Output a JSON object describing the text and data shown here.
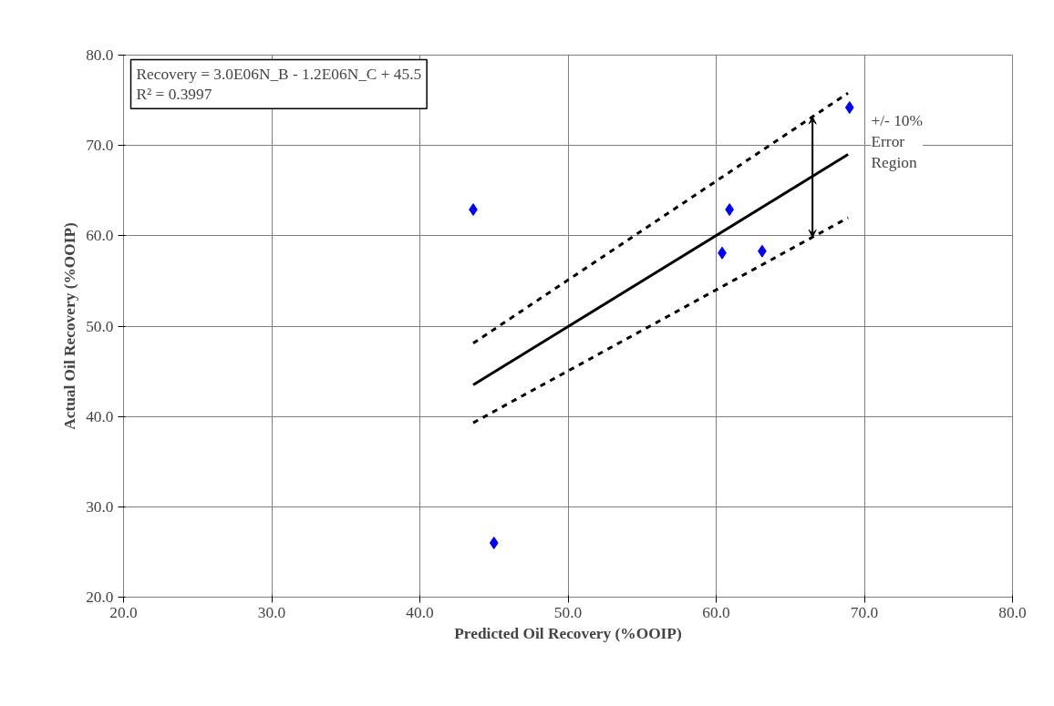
{
  "chart_data": {
    "type": "scatter",
    "xlabel": "Predicted Oil Recovery (%OOIP)",
    "ylabel": "Actual Oil Recovery (%OOIP)",
    "xlim": [
      20,
      80
    ],
    "ylim": [
      20,
      80
    ],
    "xticks": [
      {
        "value": 20,
        "label": "20.0"
      },
      {
        "value": 30,
        "label": "30.0"
      },
      {
        "value": 40,
        "label": "40.0"
      },
      {
        "value": 50,
        "label": "50.0"
      },
      {
        "value": 60,
        "label": "60.0"
      },
      {
        "value": 70,
        "label": "70.0"
      },
      {
        "value": 80,
        "label": "80.0"
      }
    ],
    "yticks": [
      {
        "value": 20,
        "label": "20.0"
      },
      {
        "value": 30,
        "label": "30.0"
      },
      {
        "value": 40,
        "label": "40.0"
      },
      {
        "value": 50,
        "label": "50.0"
      },
      {
        "value": 60,
        "label": "60.0"
      },
      {
        "value": 70,
        "label": "70.0"
      },
      {
        "value": 80,
        "label": "80.0"
      }
    ],
    "grid": true,
    "series": [
      {
        "marker": "diamond",
        "color": "#0000ff",
        "x": [
          43.6,
          45.0,
          60.9,
          60.4,
          63.1,
          69.0
        ],
        "values": [
          62.9,
          26.0,
          62.9,
          58.1,
          58.3,
          74.2
        ]
      },
      {
        "type": "line",
        "line_style": "solid",
        "color": "#000000",
        "x": [
          43.6,
          68.9
        ],
        "values": [
          43.5,
          69.0
        ]
      },
      {
        "type": "line",
        "line_style": "dashed",
        "color": "#000000",
        "x": [
          43.6,
          68.9
        ],
        "values": [
          48.1,
          75.8
        ]
      },
      {
        "type": "line",
        "line_style": "dashed",
        "color": "#000000",
        "x": [
          43.6,
          68.9
        ],
        "values": [
          39.3,
          62.0
        ]
      }
    ],
    "annotations": [
      "Recovery = 3.0E06N_B - 1.2E06N_C + 45.5",
      "R² = 0.3997",
      "+/- 10%\nError\nRegion"
    ]
  }
}
